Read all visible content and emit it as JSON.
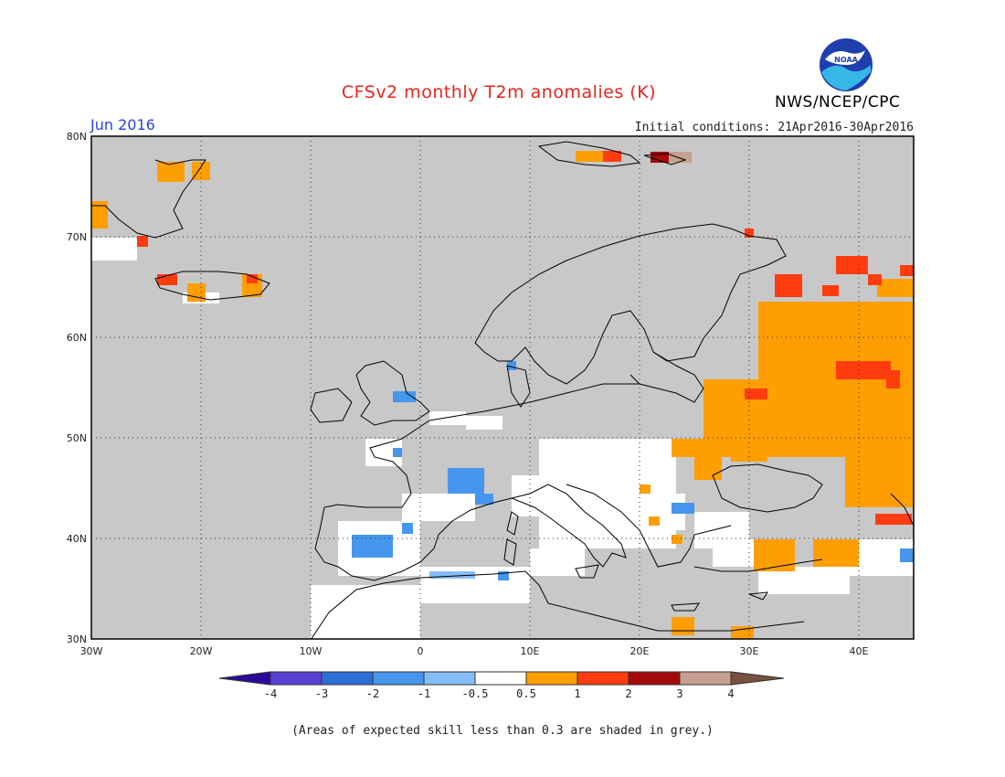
{
  "header": {
    "title": "CFSv2 monthly T2m anomalies (K)",
    "month": "Jun 2016",
    "initial_conditions": "Initial conditions: 21Apr2016-30Apr2016",
    "agency": "NWS/NCEP/CPC",
    "logo_text": "NOAA"
  },
  "map": {
    "projection": "lat-lon",
    "lon_range": [
      -30,
      45
    ],
    "lat_range": [
      30,
      80
    ],
    "lat_ticks": [
      "80N",
      "70N",
      "60N",
      "50N",
      "40N",
      "30N"
    ],
    "lon_ticks": [
      "30W",
      "20W",
      "10W",
      "0",
      "10E",
      "20E",
      "30E",
      "40E"
    ],
    "grid": "dotted",
    "colors": {
      "background_grey": "#c8c8c8",
      "white": "#ffffff",
      "coastline": "#000000"
    }
  },
  "legend": {
    "labels": [
      "-4",
      "-3",
      "-2",
      "-1",
      "-0.5",
      "0.5",
      "1",
      "2",
      "3",
      "4"
    ],
    "colors": [
      "#2a0a9c",
      "#5a3fd4",
      "#2d6fd6",
      "#4696ee",
      "#86bdf6",
      "#ffffff",
      "#ff9e00",
      "#ff3c0f",
      "#a50a0a",
      "#c8a090",
      "#7a5040"
    ]
  },
  "footer": {
    "skill_note": "(Areas of expected skill less than 0.3 are shaded in grey.)"
  }
}
